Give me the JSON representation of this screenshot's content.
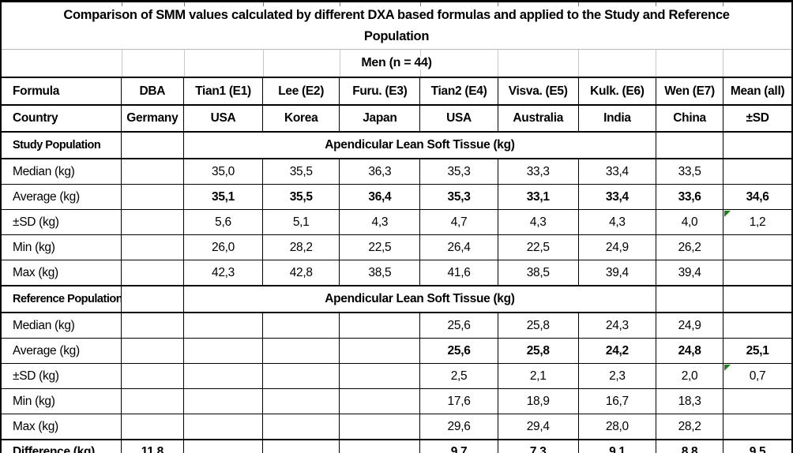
{
  "table": {
    "title": "Comparison of SMM values calculated by different DXA based formulas and applied to the Study and Reference Population",
    "group_header": "Men (n = 44)",
    "col_headers": {
      "formula_label": "Formula",
      "country_label": "Country",
      "formulas": [
        "DBA",
        "Tian1 (E1)",
        "Lee (E2)",
        "Furu. (E3)",
        "Tian2 (E4)",
        "Visva. (E5)",
        "Kulk. (E6)",
        "Wen (E7)",
        "Mean (all)"
      ],
      "countries": [
        "Germany",
        "USA",
        "Korea",
        "Japan",
        "USA",
        "Australia",
        "India",
        "China",
        "±SD"
      ]
    },
    "sections": [
      {
        "label": "Study Population",
        "span_header": "Apendicular Lean Soft Tissue (kg)",
        "rows": [
          {
            "label": "Median (kg)",
            "dba": "",
            "values": [
              "35,0",
              "35,5",
              "36,3",
              "35,3",
              "33,3",
              "33,4",
              "33,5"
            ],
            "mean": "",
            "bold": false,
            "flag": false
          },
          {
            "label": "Average (kg)",
            "dba": "",
            "values": [
              "35,1",
              "35,5",
              "36,4",
              "35,3",
              "33,1",
              "33,4",
              "33,6"
            ],
            "mean": "34,6",
            "bold": true,
            "flag": false
          },
          {
            "label": "±SD (kg)",
            "dba": "",
            "values": [
              "5,6",
              "5,1",
              "4,3",
              "4,7",
              "4,3",
              "4,3",
              "4,0"
            ],
            "mean": "1,2",
            "bold": false,
            "flag": true
          },
          {
            "label": "Min (kg)",
            "dba": "",
            "values": [
              "26,0",
              "28,2",
              "22,5",
              "26,4",
              "22,5",
              "24,9",
              "26,2"
            ],
            "mean": "",
            "bold": false,
            "flag": false
          },
          {
            "label": "Max (kg)",
            "dba": "",
            "values": [
              "42,3",
              "42,8",
              "38,5",
              "41,6",
              "38,5",
              "39,4",
              "39,4"
            ],
            "mean": "",
            "bold": false,
            "flag": false
          }
        ]
      },
      {
        "label": "Reference Population",
        "span_header": "Apendicular Lean Soft Tissue (kg)",
        "rows": [
          {
            "label": "Median (kg)",
            "dba": "",
            "values": [
              "",
              "",
              "",
              "25,6",
              "25,8",
              "24,3",
              "24,9"
            ],
            "mean": "",
            "bold": false,
            "flag": false
          },
          {
            "label": "Average (kg)",
            "dba": "",
            "values": [
              "",
              "",
              "",
              "25,6",
              "25,8",
              "24,2",
              "24,8"
            ],
            "mean": "25,1",
            "bold": true,
            "flag": false
          },
          {
            "label": "±SD (kg)",
            "dba": "",
            "values": [
              "",
              "",
              "",
              "2,5",
              "2,1",
              "2,3",
              "2,0"
            ],
            "mean": "0,7",
            "bold": false,
            "flag": true
          },
          {
            "label": "Min (kg)",
            "dba": "",
            "values": [
              "",
              "",
              "",
              "17,6",
              "18,9",
              "16,7",
              "18,3"
            ],
            "mean": "",
            "bold": false,
            "flag": false
          },
          {
            "label": "Max (kg)",
            "dba": "",
            "values": [
              "",
              "",
              "",
              "29,6",
              "29,4",
              "28,0",
              "28,2"
            ],
            "mean": "",
            "bold": false,
            "flag": false
          }
        ]
      }
    ],
    "difference": {
      "label": "Difference (kg)",
      "dba": "11,8",
      "values": [
        "",
        "",
        "",
        "9,7",
        "7,3",
        "9,1",
        "8,8"
      ],
      "mean": "9,5"
    },
    "colors": {
      "error_flag_green": "#1d801d",
      "grid_gray": "#c6c6c6",
      "border_black": "#000000"
    }
  }
}
